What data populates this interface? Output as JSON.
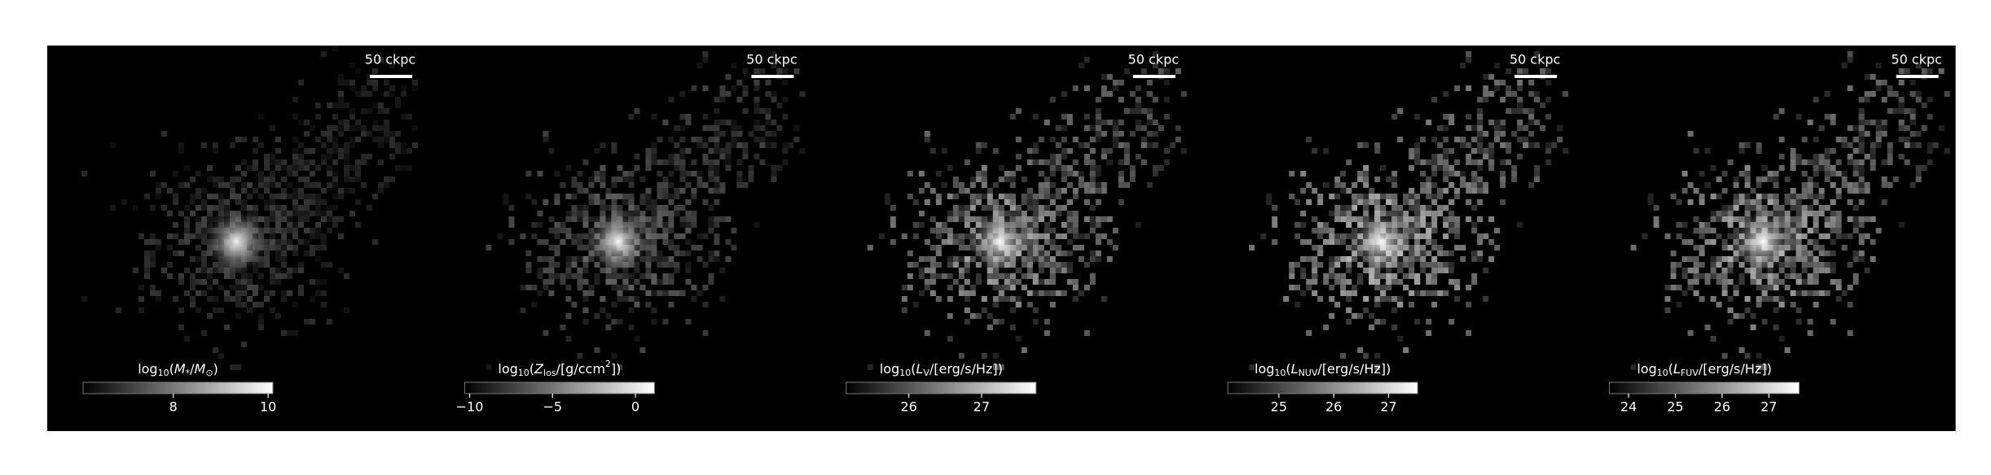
{
  "panels": [
    {
      "scale_bar": "50 ckpc",
      "colorbar": {
        "label_parts": [
          {
            "text": "log"
          },
          {
            "text": "10",
            "shift": "sub"
          },
          {
            "text": "("
          },
          {
            "text": "M",
            "italic": true
          },
          {
            "text": "*",
            "shift": "sub"
          },
          {
            "text": "/"
          },
          {
            "text": "M",
            "italic": true
          },
          {
            "text": "⊙",
            "shift": "sub"
          },
          {
            "text": ")"
          }
        ],
        "lim": [
          6.1,
          10.1
        ],
        "ticks": [
          8,
          10
        ]
      }
    },
    {
      "scale_bar": "50 ckpc",
      "colorbar": {
        "label_parts": [
          {
            "text": "log"
          },
          {
            "text": "10",
            "shift": "sub"
          },
          {
            "text": "("
          },
          {
            "text": "Z",
            "italic": true
          },
          {
            "text": "los",
            "shift": "sub"
          },
          {
            "text": "/[g/ccm"
          },
          {
            "text": "2",
            "shift": "super"
          },
          {
            "text": "])"
          }
        ],
        "lim": [
          -10.3,
          1.15
        ],
        "ticks": [
          {
            "value": -10,
            "label": "−10"
          },
          {
            "value": -5,
            "label": "−5"
          },
          0
        ]
      }
    },
    {
      "scale_bar": "50 ckpc",
      "colorbar": {
        "label_parts": [
          {
            "text": "log"
          },
          {
            "text": "10",
            "shift": "sub"
          },
          {
            "text": "("
          },
          {
            "text": "L",
            "italic": true
          },
          {
            "text": "V",
            "shift": "sub"
          },
          {
            "text": "/[erg/s/Hz])"
          }
        ],
        "lim": [
          25.14,
          27.75
        ],
        "ticks": [
          26,
          27
        ]
      }
    },
    {
      "scale_bar": "50 ckpc",
      "colorbar": {
        "label_parts": [
          {
            "text": "log"
          },
          {
            "text": "10",
            "shift": "sub"
          },
          {
            "text": "("
          },
          {
            "text": "L",
            "italic": true
          },
          {
            "text": "NUV",
            "shift": "sub"
          },
          {
            "text": "/[erg/s/Hz])"
          }
        ],
        "lim": [
          24.07,
          27.53
        ],
        "ticks": [
          25,
          26,
          27
        ]
      }
    },
    {
      "scale_bar": "50 ckpc",
      "colorbar": {
        "label_parts": [
          {
            "text": "log"
          },
          {
            "text": "10",
            "shift": "sub"
          },
          {
            "text": "("
          },
          {
            "text": "L",
            "italic": true
          },
          {
            "text": "FUV",
            "shift": "sub"
          },
          {
            "text": "/[erg/s/Hz])"
          }
        ],
        "lim": [
          23.59,
          27.65
        ],
        "ticks": [
          24,
          25,
          26,
          27
        ]
      }
    }
  ]
}
